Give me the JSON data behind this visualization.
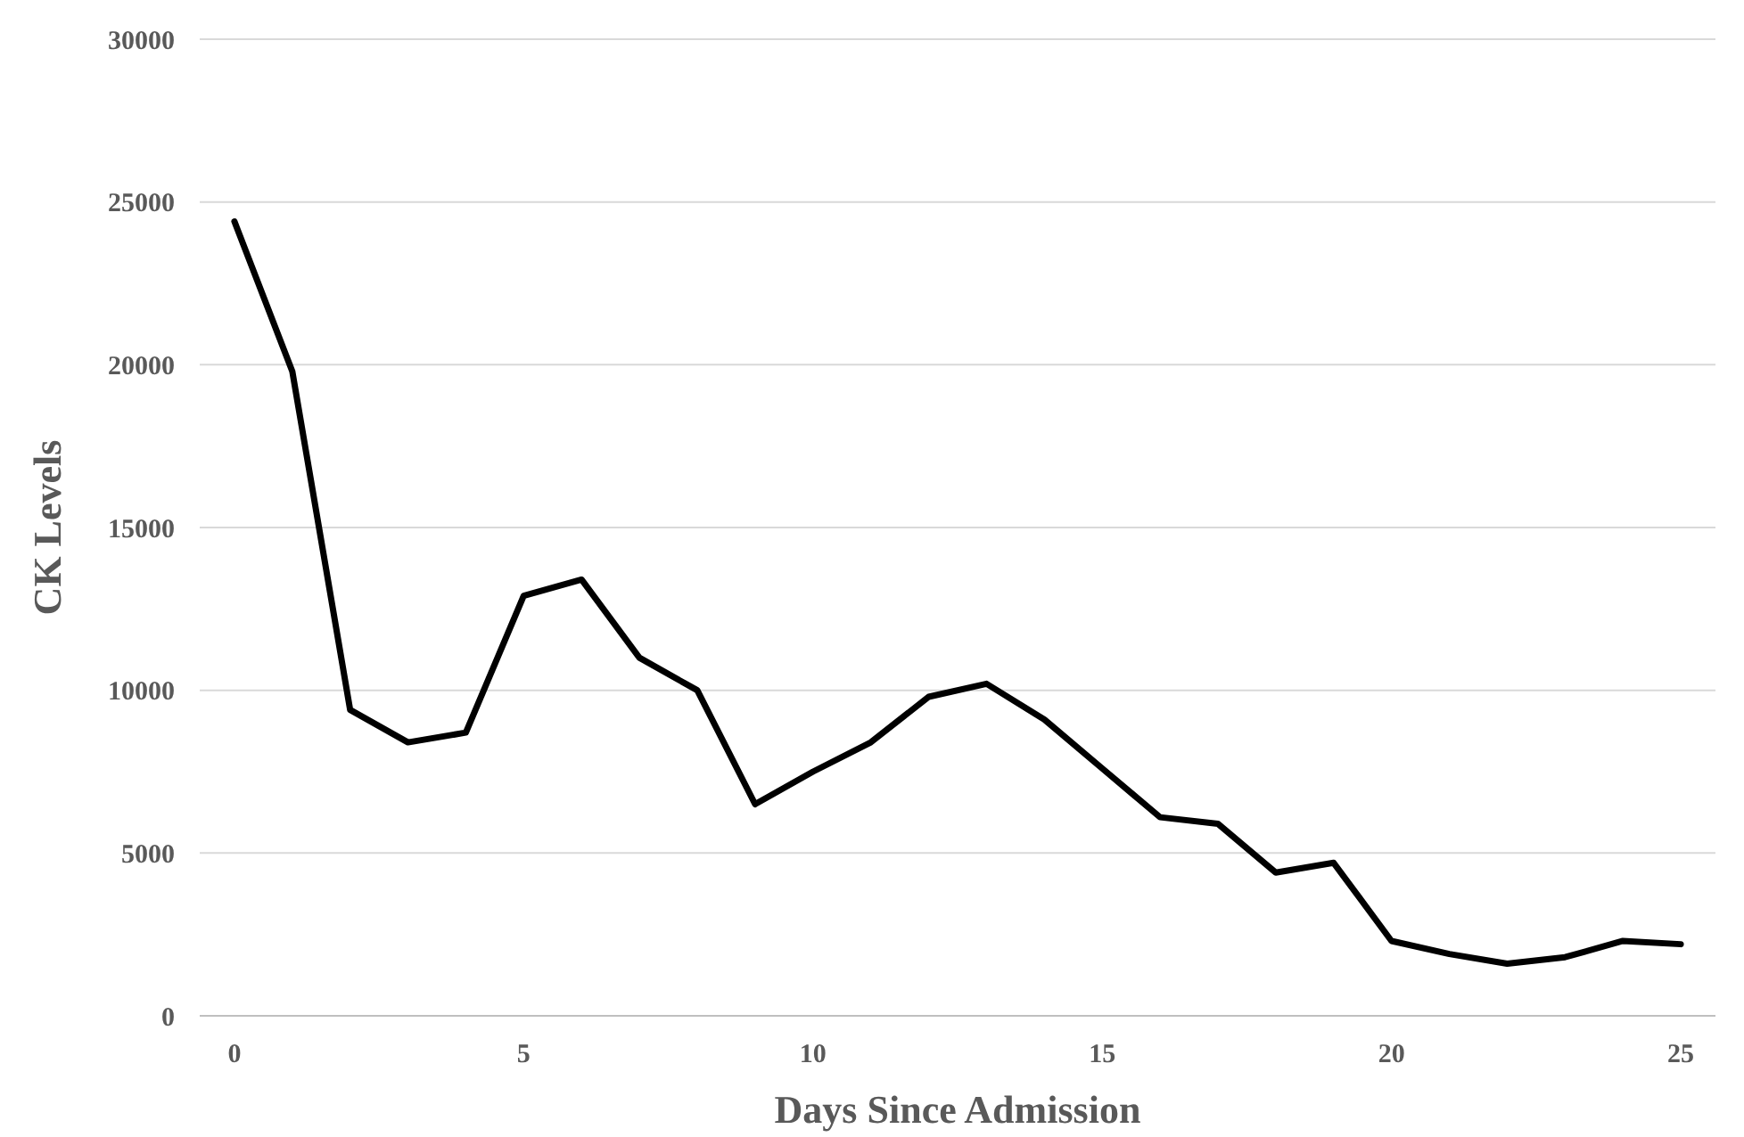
{
  "chart_data": {
    "type": "line",
    "xlabel": "Days Since Admission",
    "ylabel": "CK Levels",
    "x": [
      0,
      1,
      2,
      3,
      4,
      5,
      6,
      7,
      8,
      9,
      10,
      11,
      12,
      13,
      14,
      15,
      16,
      17,
      18,
      19,
      20,
      21,
      22,
      23,
      24,
      25
    ],
    "series": [
      {
        "color": "#000000",
        "values": [
          24400,
          19800,
          9400,
          8400,
          8700,
          12900,
          13400,
          11000,
          10000,
          6500,
          7500,
          8400,
          9800,
          10200,
          9100,
          7600,
          6100,
          5900,
          4400,
          4700,
          2300,
          1900,
          1600,
          1800,
          2300,
          2200
        ]
      }
    ],
    "xlim": [
      -0.6,
      25.6
    ],
    "xticks": [
      0,
      5,
      10,
      15,
      20,
      25
    ],
    "ylim": [
      0,
      30000
    ],
    "yticks": [
      0,
      5000,
      10000,
      15000,
      20000,
      25000,
      30000
    ],
    "grid": "y",
    "marker": "none",
    "line_style": "solid"
  }
}
